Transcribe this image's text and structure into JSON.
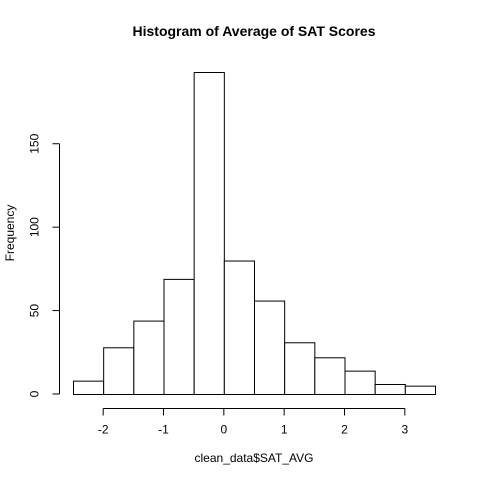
{
  "chart_data": {
    "type": "bar",
    "title": "Histogram of Average of SAT Scores",
    "xlabel": "clean_data$SAT_AVG",
    "ylabel": "Frequency",
    "bin_edges": [
      -2.5,
      -2.0,
      -1.5,
      -1.0,
      -0.5,
      0.0,
      0.5,
      1.0,
      1.5,
      2.0,
      2.5,
      3.0,
      3.5
    ],
    "values": [
      8,
      28,
      44,
      69,
      193,
      80,
      56,
      31,
      22,
      14,
      6,
      5
    ],
    "xlim": [
      -2.5,
      3.5
    ],
    "ylim": [
      0,
      193
    ],
    "x_ticks": [
      -2,
      -1,
      0,
      1,
      2,
      3
    ],
    "x_tick_labels": [
      "-2",
      "-1",
      "0",
      "1",
      "2",
      "3"
    ],
    "y_ticks": [
      0,
      50,
      100,
      150
    ],
    "y_tick_labels": [
      "0",
      "50",
      "100",
      "150"
    ],
    "grid": false,
    "bar_fill": "#ffffff",
    "bar_stroke": "#000000"
  }
}
